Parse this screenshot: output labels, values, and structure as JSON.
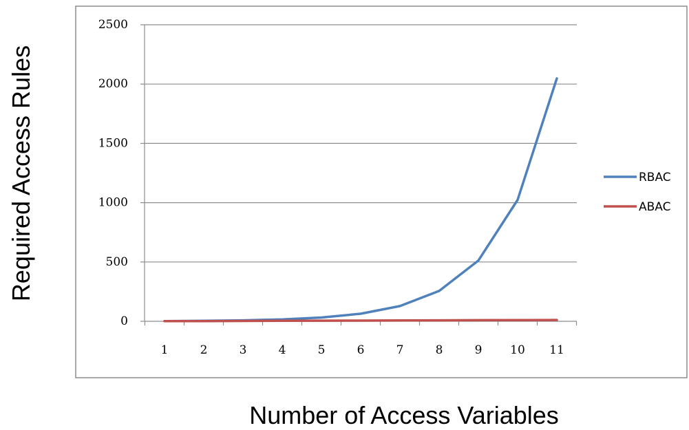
{
  "chart_data": {
    "type": "line",
    "title": "",
    "xlabel": "Number of Access Variables",
    "ylabel": "Required Access Rules",
    "categories": [
      "1",
      "2",
      "3",
      "4",
      "5",
      "6",
      "7",
      "8",
      "9",
      "10",
      "11"
    ],
    "x": [
      1,
      2,
      3,
      4,
      5,
      6,
      7,
      8,
      9,
      10,
      11
    ],
    "series": [
      {
        "name": "RBAC",
        "color": "#4f81bd",
        "values": [
          2,
          4,
          8,
          16,
          32,
          64,
          128,
          256,
          512,
          1024,
          2048
        ]
      },
      {
        "name": "ABAC",
        "color": "#c0504d",
        "values": [
          1,
          2,
          3,
          4,
          5,
          6,
          7,
          8,
          9,
          10,
          11
        ]
      }
    ],
    "yticks": [
      "0",
      "500",
      "1000",
      "1500",
      "2000",
      "2500"
    ],
    "ylim": [
      0,
      2500
    ],
    "grid": true,
    "legend": "right"
  }
}
